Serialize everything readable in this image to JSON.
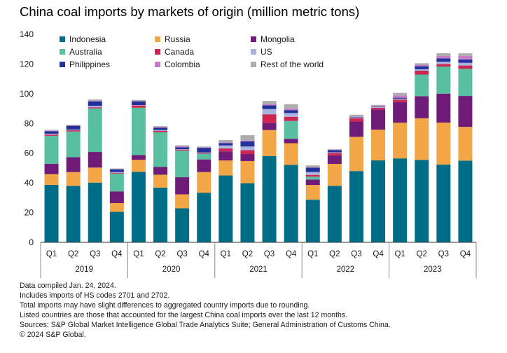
{
  "chart_data": {
    "type": "bar",
    "stacked": true,
    "title": "China coal imports by markets of origin (million metric tons)",
    "xlabel": "",
    "ylabel": "",
    "ylim": [
      0,
      140
    ],
    "yticks": [
      "0",
      "20",
      "40",
      "60",
      "80",
      "100",
      "120",
      "140"
    ],
    "grid": false,
    "legend_position": "top-left",
    "categories": [
      "Q1",
      "Q2",
      "Q3",
      "Q4",
      "Q1",
      "Q2",
      "Q3",
      "Q4",
      "Q1",
      "Q2",
      "Q3",
      "Q4",
      "Q1",
      "Q2",
      "Q3",
      "Q4",
      "Q1",
      "Q2",
      "Q3",
      "Q4"
    ],
    "groups": [
      {
        "label": "2019",
        "start": 0,
        "count": 4
      },
      {
        "label": "2020",
        "start": 4,
        "count": 4
      },
      {
        "label": "2021",
        "start": 8,
        "count": 4
      },
      {
        "label": "2022",
        "start": 12,
        "count": 4
      },
      {
        "label": "2023",
        "start": 16,
        "count": 4
      }
    ],
    "series": [
      {
        "name": "Indonesia",
        "color": "#006d86",
        "values": [
          38.7,
          38.0,
          40.2,
          20.5,
          47.5,
          36.8,
          22.9,
          33.4,
          45.0,
          39.8,
          58.0,
          52.2,
          28.7,
          38.0,
          48.0,
          55.2,
          56.5,
          55.5,
          52.3,
          55.0
        ]
      },
      {
        "name": "Russia",
        "color": "#f2a646",
        "values": [
          7.2,
          9.3,
          10.1,
          5.9,
          8.1,
          8.7,
          9.4,
          13.9,
          10.1,
          14.9,
          17.6,
          14.5,
          9.9,
          14.8,
          23.0,
          20.6,
          24.0,
          28.0,
          28.3,
          22.7
        ]
      },
      {
        "name": "Mongolia",
        "color": "#6e1c78",
        "values": [
          7.0,
          10.0,
          10.5,
          7.9,
          3.2,
          5.3,
          11.5,
          8.5,
          6.1,
          4.7,
          4.7,
          3.0,
          3.6,
          5.7,
          10.3,
          13.6,
          13.9,
          14.8,
          19.5,
          20.8
        ]
      },
      {
        "name": "Australia",
        "color": "#58bfa0",
        "values": [
          18.8,
          17.3,
          29.4,
          12.0,
          31.8,
          23.3,
          18.0,
          3.8,
          0,
          0,
          0,
          12.0,
          2.0,
          0,
          0,
          0,
          0,
          14.6,
          18.2,
          18.3
        ]
      },
      {
        "name": "Canada",
        "color": "#cc2651",
        "values": [
          0.8,
          0.8,
          0.7,
          0.5,
          1.5,
          1.0,
          0.6,
          0.5,
          2.0,
          2.6,
          5.9,
          2.8,
          1.2,
          1.7,
          2.2,
          1.2,
          1.7,
          2.6,
          1.7,
          2.2
        ]
      },
      {
        "name": "US",
        "color": "#a8b4e0",
        "values": [
          0.6,
          0.5,
          1.0,
          0.5,
          0.3,
          0.5,
          0.3,
          0.4,
          2.0,
          2.5,
          3.5,
          2.5,
          1.9,
          0.4,
          0.6,
          0.4,
          0.6,
          1.0,
          1.6,
          1.8
        ]
      },
      {
        "name": "Philippines",
        "color": "#24309a",
        "values": [
          1.7,
          2.5,
          3.0,
          1.8,
          2.5,
          1.6,
          1.3,
          3.1,
          1.5,
          3.5,
          2.5,
          2.0,
          2.9,
          1.4,
          0.3,
          0.3,
          0.6,
          2.0,
          2.2,
          2.3
        ]
      },
      {
        "name": "Colombia",
        "color": "#c47cc4",
        "values": [
          0.3,
          0.3,
          0.5,
          0.2,
          0.3,
          0.5,
          0.6,
          0.4,
          0.5,
          0.5,
          1.0,
          1.0,
          0.3,
          0.3,
          0.3,
          0.5,
          1.6,
          1.0,
          1.6,
          2.3
        ]
      },
      {
        "name": "Rest of the world",
        "color": "#adadad",
        "values": [
          0.6,
          0.5,
          0.8,
          0.4,
          0.6,
          0.5,
          0.7,
          0.5,
          1.7,
          3.6,
          2.0,
          3.0,
          1.3,
          0.5,
          1.2,
          0.7,
          1.7,
          1.0,
          1.9,
          1.8
        ]
      }
    ]
  },
  "notes": [
    "Data compiled Jan. 24, 2024.",
    "Includes imports of HS codes 2701 and 2702.",
    "Total imports may have slight differences to aggregated country imports due to rounding.",
    "Listed countries are those that accounted for the largest China coal imports over the last 12 months.",
    "Sources: S&P Global Market Intelligence Global Trade Analytics Suite; General Administration of Customs China.",
    "© 2024 S&P Global."
  ]
}
